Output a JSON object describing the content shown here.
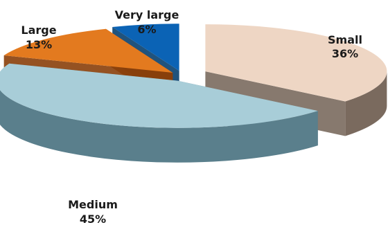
{
  "chart_data": {
    "type": "pie",
    "title": "",
    "style": "3d-exploded",
    "slices": [
      {
        "label": "Small",
        "value": 36,
        "display": "36%",
        "color": "#eed6c4",
        "side_color": "#7a6a5e"
      },
      {
        "label": "Medium",
        "value": 45,
        "display": "45%",
        "color": "#a8cdd8",
        "side_color": "#5a7f8c"
      },
      {
        "label": "Large",
        "value": 13,
        "display": "13%",
        "color": "#e37a1f",
        "side_color": "#8a3f0a"
      },
      {
        "label": "Very large",
        "value": 6,
        "display": "6%",
        "color": "#0b63b5",
        "side_color": "#08406f"
      }
    ]
  }
}
